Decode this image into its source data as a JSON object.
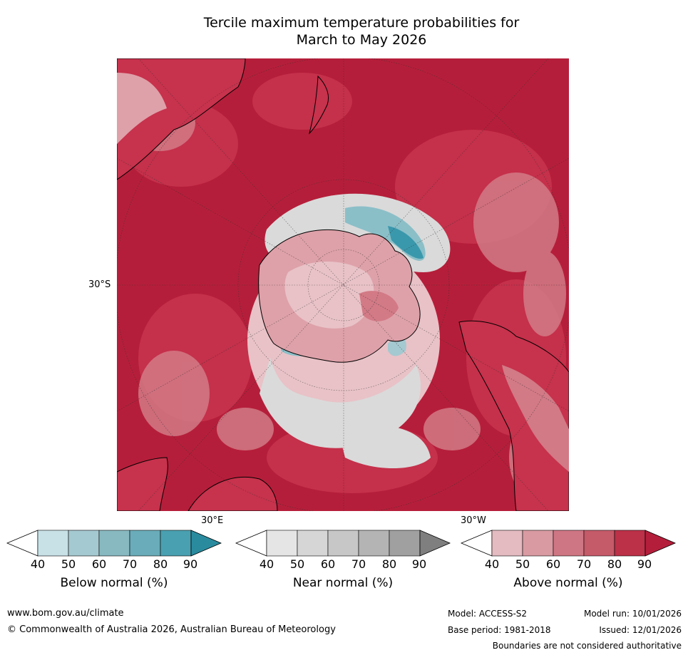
{
  "title": {
    "line1": "Tercile maximum temperature probabilities for",
    "line2": "March to May 2026"
  },
  "map": {
    "projection": "south-polar-stereographic",
    "lat_label": "30°S",
    "lon_label_left": "30°E",
    "lon_label_right": "30°W",
    "colors": {
      "above_90": "#b51e3a",
      "above_80": "#c7324c",
      "above_70": "#cd5d6c",
      "above_60": "#d27a86",
      "above_50": "#dea1a9",
      "above_40": "#e8c2c7",
      "near": "#dadada",
      "below_60": "#8bbfc8",
      "below_80": "#3a98ac",
      "land_outline": "#000000"
    }
  },
  "colorbars": [
    {
      "label": "Below normal (%)",
      "ticks": [
        "40",
        "50",
        "60",
        "70",
        "80",
        "90"
      ],
      "colors": [
        "#ffffff",
        "#c7e1e7",
        "#a5c9d0",
        "#88b9c1",
        "#6aacb9",
        "#49a0b1",
        "#2a8b9f"
      ]
    },
    {
      "label": "Near normal (%)",
      "ticks": [
        "40",
        "50",
        "60",
        "70",
        "80",
        "90"
      ],
      "colors": [
        "#ffffff",
        "#e5e5e5",
        "#d6d6d6",
        "#c7c7c7",
        "#b4b4b4",
        "#a0a0a0",
        "#7f7f7f"
      ]
    },
    {
      "label": "Above normal (%)",
      "ticks": [
        "40",
        "50",
        "60",
        "70",
        "80",
        "90"
      ],
      "colors": [
        "#ffffff",
        "#e4bbc1",
        "#d99aa2",
        "#ce7683",
        "#c55a69",
        "#bc3048",
        "#b51e3a"
      ]
    }
  ],
  "footer": {
    "url": "www.bom.gov.au/climate",
    "copyright": "© Commonwealth of Australia 2026, Australian Bureau of Meteorology",
    "model": "Model: ACCESS-S2",
    "model_run": "Model run: 10/01/2026",
    "base_period": "Base period: 1981-2018",
    "issued": "Issued: 12/01/2026",
    "disclaimer": "Boundaries are not considered authoritative"
  }
}
